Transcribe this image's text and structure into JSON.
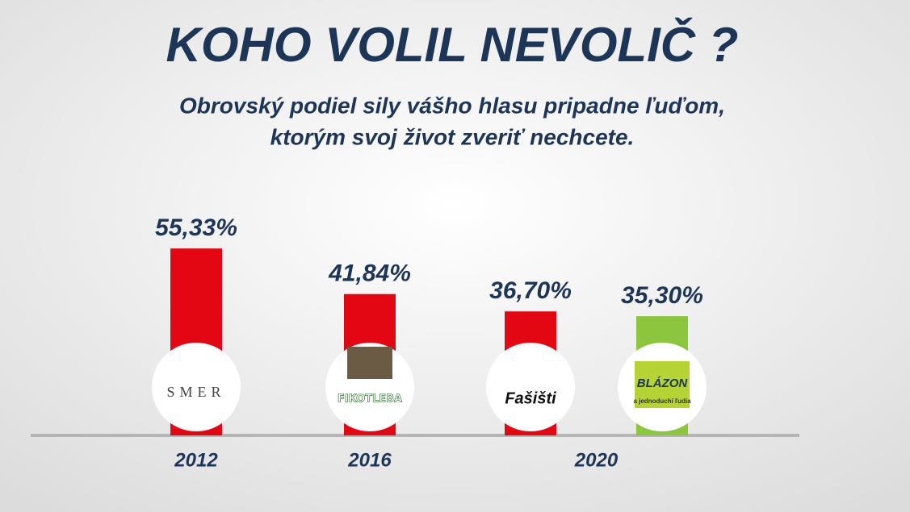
{
  "chart_data": {
    "type": "bar",
    "title": "KOHO VOLIL NEVOLIČ ?",
    "subtitle": [
      "Obrovský podiel sily vášho hlasu pripadne ľuďom,",
      "ktorým svoj život  zveriť nechcete."
    ],
    "categories": [
      "2012",
      "2016",
      "2020",
      null
    ],
    "values": [
      55.33,
      41.84,
      36.7,
      35.3
    ],
    "value_labels": [
      "55,33%",
      "41,84%",
      "36,70%",
      "35,30%"
    ],
    "colors": [
      "#e30613",
      "#e30613",
      "#e30613",
      "#8cc63f"
    ],
    "logos": [
      [
        "SMER"
      ],
      [
        "FIKOTLEBA"
      ],
      [
        "Fašišti"
      ],
      [
        "BLÁZON",
        "a jednoduchí ľudia"
      ]
    ]
  }
}
